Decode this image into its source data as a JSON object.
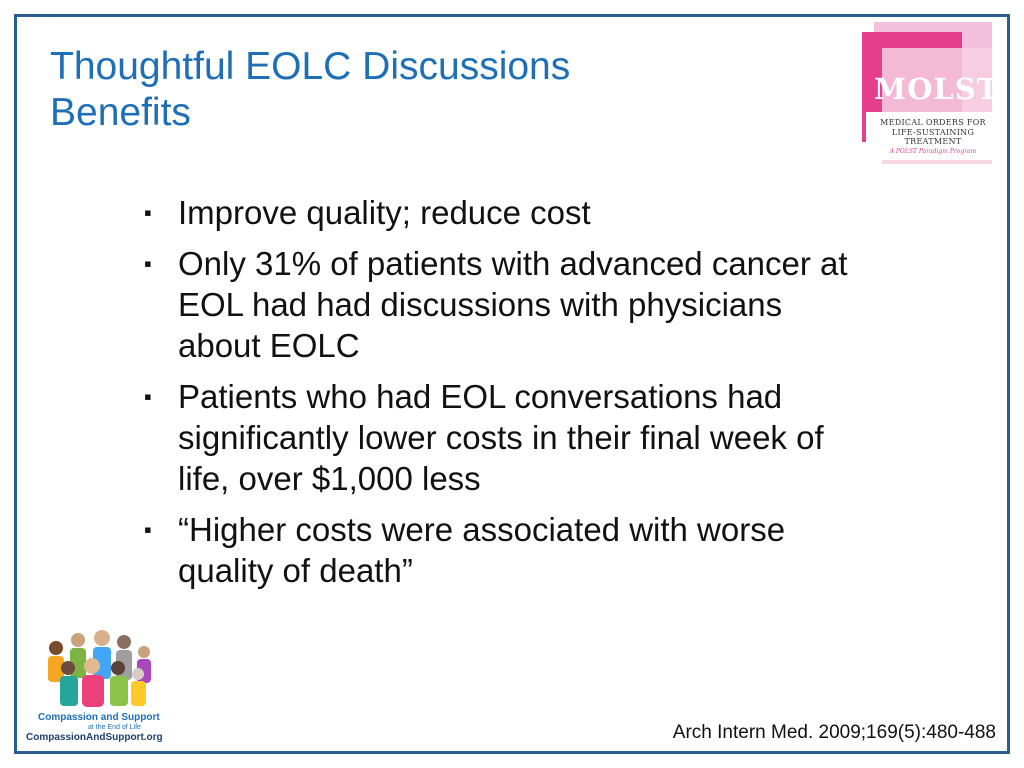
{
  "slide": {
    "title_lines": [
      "Thoughtful EOLC  Discussions",
      "Benefits"
    ],
    "bullets": [
      "Improve quality; reduce cost",
      "Only 31% of patients with advanced cancer at EOL had had discussions with physicians about EOLC",
      "Patients who had EOL conversations had significantly lower costs in their final week of life, over $1,000 less",
      "“Higher costs were associated with worse quality of death”"
    ],
    "bullet_marker": "▪",
    "citation": "Arch Intern Med. 2009;169(5):480-488"
  },
  "molst_logo": {
    "wordmark": "MOLST",
    "subtitle_line1": "MEDICAL ORDERS FOR",
    "subtitle_line2": "LIFE-SUSTAINING TREATMENT",
    "tagline": "A POLST Paradigm Program"
  },
  "compassion_logo": {
    "line1": "Compassion and Support",
    "line2": "at the End of Life",
    "line3": "CompassionAndSupport.org"
  },
  "colors": {
    "title": "#1f6fb6",
    "border": "#2b5f8e",
    "molst_pink": "#e53e8f",
    "molst_light_pink": "#f3c1db"
  }
}
